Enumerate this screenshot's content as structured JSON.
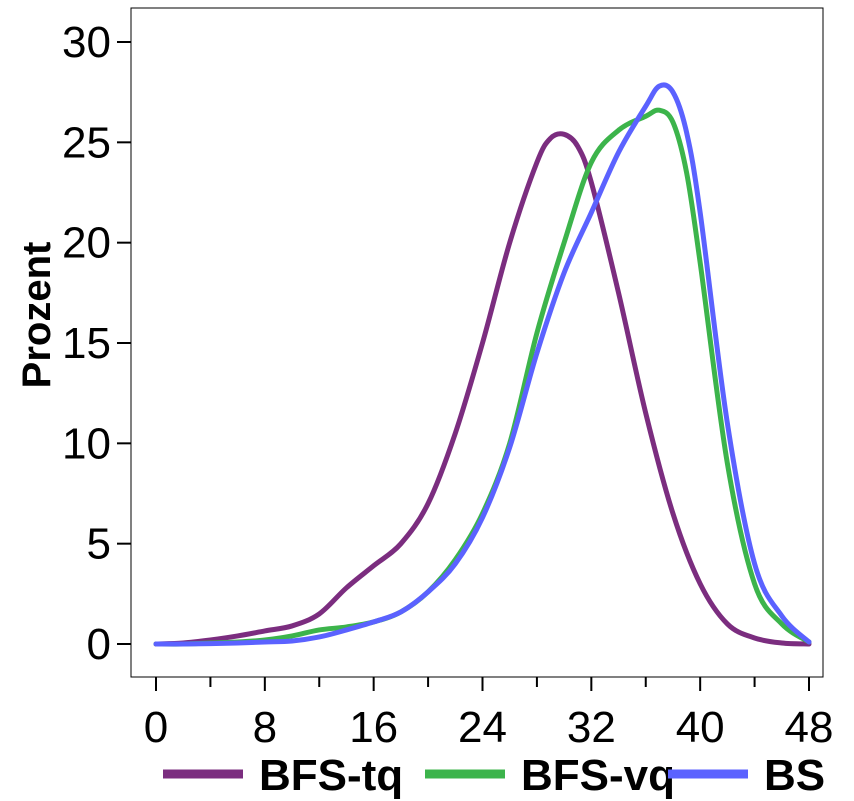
{
  "chart_data": {
    "type": "line",
    "title": "",
    "xlabel": "",
    "ylabel": "Prozent",
    "xlim": [
      0,
      48
    ],
    "ylim": [
      0,
      30
    ],
    "x_ticks": [
      0,
      8,
      16,
      24,
      32,
      40,
      48
    ],
    "x_minor_ticks": [
      4,
      12,
      20,
      28,
      36,
      44
    ],
    "y_ticks": [
      0,
      5,
      10,
      15,
      20,
      25,
      30
    ],
    "grid": false,
    "legend_position": "bottom",
    "series": [
      {
        "name": "BFS-tq",
        "color": "#7b2d7f",
        "points": [
          [
            0,
            0.0
          ],
          [
            2,
            0.05
          ],
          [
            4,
            0.2
          ],
          [
            6,
            0.4
          ],
          [
            8,
            0.65
          ],
          [
            10,
            0.9
          ],
          [
            12,
            1.5
          ],
          [
            14,
            2.8
          ],
          [
            16,
            3.9
          ],
          [
            18,
            5.0
          ],
          [
            20,
            7.0
          ],
          [
            22,
            10.5
          ],
          [
            24,
            15.0
          ],
          [
            26,
            20.0
          ],
          [
            28,
            24.0
          ],
          [
            29,
            25.2
          ],
          [
            30,
            25.4
          ],
          [
            31,
            24.8
          ],
          [
            32,
            23.0
          ],
          [
            34,
            17.5
          ],
          [
            36,
            11.5
          ],
          [
            38,
            6.5
          ],
          [
            40,
            3.0
          ],
          [
            42,
            1.0
          ],
          [
            44,
            0.3
          ],
          [
            46,
            0.05
          ],
          [
            48,
            0.0
          ]
        ]
      },
      {
        "name": "BFS-vq",
        "color": "#3cb44b",
        "points": [
          [
            0,
            0.0
          ],
          [
            2,
            0.0
          ],
          [
            4,
            0.05
          ],
          [
            6,
            0.1
          ],
          [
            8,
            0.2
          ],
          [
            10,
            0.4
          ],
          [
            12,
            0.7
          ],
          [
            14,
            0.85
          ],
          [
            16,
            1.1
          ],
          [
            18,
            1.6
          ],
          [
            20,
            2.6
          ],
          [
            22,
            4.2
          ],
          [
            24,
            6.5
          ],
          [
            26,
            10.0
          ],
          [
            28,
            15.5
          ],
          [
            30,
            20.0
          ],
          [
            32,
            24.0
          ],
          [
            34,
            25.6
          ],
          [
            36,
            26.3
          ],
          [
            37,
            26.6
          ],
          [
            38,
            26.0
          ],
          [
            39,
            23.5
          ],
          [
            40,
            19.0
          ],
          [
            42,
            9.0
          ],
          [
            44,
            3.0
          ],
          [
            46,
            1.0
          ],
          [
            48,
            0.1
          ]
        ]
      },
      {
        "name": "BS",
        "color": "#5b62ff",
        "points": [
          [
            0,
            0.0
          ],
          [
            2,
            0.0
          ],
          [
            4,
            0.02
          ],
          [
            6,
            0.05
          ],
          [
            8,
            0.1
          ],
          [
            10,
            0.15
          ],
          [
            12,
            0.35
          ],
          [
            14,
            0.7
          ],
          [
            16,
            1.1
          ],
          [
            18,
            1.6
          ],
          [
            20,
            2.6
          ],
          [
            22,
            4.0
          ],
          [
            24,
            6.3
          ],
          [
            26,
            9.8
          ],
          [
            28,
            14.5
          ],
          [
            30,
            18.5
          ],
          [
            32,
            21.5
          ],
          [
            34,
            24.5
          ],
          [
            36,
            26.8
          ],
          [
            37,
            27.8
          ],
          [
            38,
            27.5
          ],
          [
            39,
            25.5
          ],
          [
            40,
            21.5
          ],
          [
            42,
            11.0
          ],
          [
            44,
            4.0
          ],
          [
            46,
            1.4
          ],
          [
            48,
            0.1
          ]
        ]
      }
    ]
  }
}
